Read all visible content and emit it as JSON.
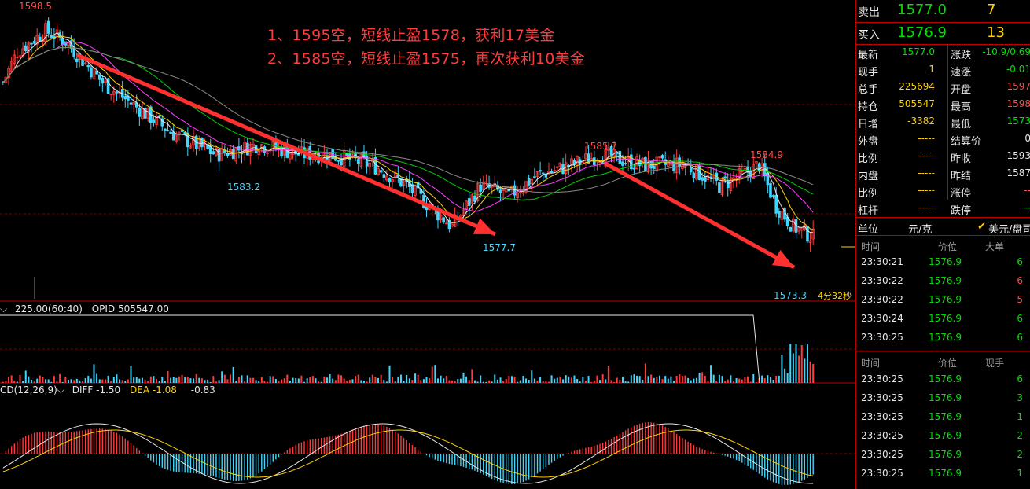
{
  "annotations": {
    "line1": "1、1595空，短线止盈1578，获利17美金",
    "line2": "2、1585空，短线止盈1575，再次获利10美金"
  },
  "price_labels": {
    "high1": "1598.5",
    "low1": "1583.2",
    "low2": "1577.7",
    "high2": "1585.7",
    "high3": "1584.9",
    "low3": "1573.3",
    "countdown": "4分32秒"
  },
  "volume_header": {
    "vol": "225.00(60:40)",
    "opid": "OPID 505547.00"
  },
  "macd_header": {
    "name": "CD(12,26,9)",
    "diff": "DIFF -1.50",
    "dea": "DEA -1.08",
    "macd": "-0.83"
  },
  "quote": {
    "sell_label": "卖出",
    "sell_price": "1577.0",
    "sell_qty": "7",
    "buy_label": "买入",
    "buy_price": "1576.9",
    "buy_qty": "13"
  },
  "stats": [
    {
      "l1": "最新",
      "v1": "1577.0",
      "c1": "#00e000",
      "l2": "涨跌",
      "v2": "-10.9/0.69",
      "c2": "#00e000"
    },
    {
      "l1": "现手",
      "v1": "1",
      "c1": "#ffd200",
      "l2": "速涨",
      "v2": "-0.01",
      "c2": "#00e000"
    },
    {
      "l1": "总手",
      "v1": "225694",
      "c1": "#ffd200",
      "l2": "开盘",
      "v2": "1597",
      "c2": "#ff4d4d"
    },
    {
      "l1": "持仓",
      "v1": "505547",
      "c1": "#ffd200",
      "l2": "最高",
      "v2": "1598",
      "c2": "#ff4d4d"
    },
    {
      "l1": "日增",
      "v1": "-3382",
      "c1": "#ffd200",
      "l2": "最低",
      "v2": "1573",
      "c2": "#00e000"
    },
    {
      "l1": "外盘",
      "v1": "-----",
      "c1": "#ffd200",
      "l2": "结算价",
      "v2": "0",
      "c2": "#e8e8e8"
    },
    {
      "l1": "比例",
      "v1": "-----",
      "c1": "#ffd200",
      "l2": "昨收",
      "v2": "1593",
      "c2": "#e8e8e8"
    },
    {
      "l1": "内盘",
      "v1": "-----",
      "c1": "#ffd200",
      "l2": "昨结",
      "v2": "1587",
      "c2": "#e8e8e8"
    },
    {
      "l1": "比例",
      "v1": "-----",
      "c1": "#ffd200",
      "l2": "涨停",
      "v2": "--",
      "c2": "#ff4d4d"
    },
    {
      "l1": "杠杆",
      "v1": "-----",
      "c1": "#ffd200",
      "l2": "跌停",
      "v2": "--",
      "c2": "#00e000"
    }
  ],
  "unit": {
    "label": "单位",
    "value": "元/克",
    "option": "美元/盘司"
  },
  "big_trades": {
    "headers": [
      "时间",
      "价位",
      "大单"
    ],
    "rows": [
      {
        "time": "23:30:21",
        "price": "1576.9",
        "qty": "6",
        "qc": "#00e000"
      },
      {
        "time": "23:30:22",
        "price": "1576.9",
        "qty": "6",
        "qc": "#ff4d4d"
      },
      {
        "time": "23:30:22",
        "price": "1576.9",
        "qty": "5",
        "qc": "#ff4d4d"
      },
      {
        "time": "23:30:24",
        "price": "1576.9",
        "qty": "6",
        "qc": "#00e000"
      },
      {
        "time": "23:30:25",
        "price": "1576.9",
        "qty": "6",
        "qc": "#00e000"
      }
    ]
  },
  "ticks": {
    "headers": [
      "时间",
      "价位",
      "现手"
    ],
    "rows": [
      {
        "time": "23:30:25",
        "price": "1576.9",
        "qty": "6"
      },
      {
        "time": "23:30:25",
        "price": "1576.9",
        "qty": "3"
      },
      {
        "time": "23:30:25",
        "price": "1576.9",
        "qty": "1"
      },
      {
        "time": "23:30:25",
        "price": "1576.9",
        "qty": "2"
      },
      {
        "time": "23:30:25",
        "price": "1576.9",
        "qty": "2"
      },
      {
        "time": "23:30:25",
        "price": "1576.9",
        "qty": "1"
      }
    ]
  },
  "chart_data": {
    "type": "candlestick",
    "title": "",
    "price_range": [
      1571,
      1600
    ],
    "approx_close_path": [
      {
        "bar": 0,
        "price": 1592
      },
      {
        "bar": 5,
        "price": 1595
      },
      {
        "bar": 15,
        "price": 1597
      },
      {
        "bar": 22,
        "price": 1596
      },
      {
        "bar": 35,
        "price": 1592
      },
      {
        "bar": 45,
        "price": 1590
      },
      {
        "bar": 60,
        "price": 1587
      },
      {
        "bar": 75,
        "price": 1585
      },
      {
        "bar": 90,
        "price": 1586
      },
      {
        "bar": 105,
        "price": 1585
      },
      {
        "bar": 115,
        "price": 1585
      },
      {
        "bar": 130,
        "price": 1584
      },
      {
        "bar": 142,
        "price": 1582
      },
      {
        "bar": 150,
        "price": 1580
      },
      {
        "bar": 158,
        "price": 1578
      },
      {
        "bar": 168,
        "price": 1582
      },
      {
        "bar": 178,
        "price": 1581
      },
      {
        "bar": 188,
        "price": 1583
      },
      {
        "bar": 200,
        "price": 1584
      },
      {
        "bar": 210,
        "price": 1585
      },
      {
        "bar": 225,
        "price": 1584
      },
      {
        "bar": 240,
        "price": 1584
      },
      {
        "bar": 252,
        "price": 1582
      },
      {
        "bar": 260,
        "price": 1583
      },
      {
        "bar": 266,
        "price": 1584
      },
      {
        "bar": 272,
        "price": 1580
      },
      {
        "bar": 278,
        "price": 1578
      },
      {
        "bar": 285,
        "price": 1577
      }
    ],
    "marked_points": [
      {
        "label": "1598.5",
        "price": 1598.5
      },
      {
        "label": "1583.2",
        "price": 1583.2
      },
      {
        "label": "1577.7",
        "price": 1577.7
      },
      {
        "label": "1585.7",
        "price": 1585.7
      },
      {
        "label": "1584.9",
        "price": 1584.9
      },
      {
        "label": "1573.3",
        "price": 1573.3
      }
    ],
    "macd": {
      "diff": -1.5,
      "dea": -1.08,
      "macd": -0.83
    },
    "open_interest": 505547
  },
  "colors": {
    "up": "#ff3b3b",
    "down": "#3fd7ff",
    "grid": "#7a0000",
    "border": "#c00000"
  }
}
